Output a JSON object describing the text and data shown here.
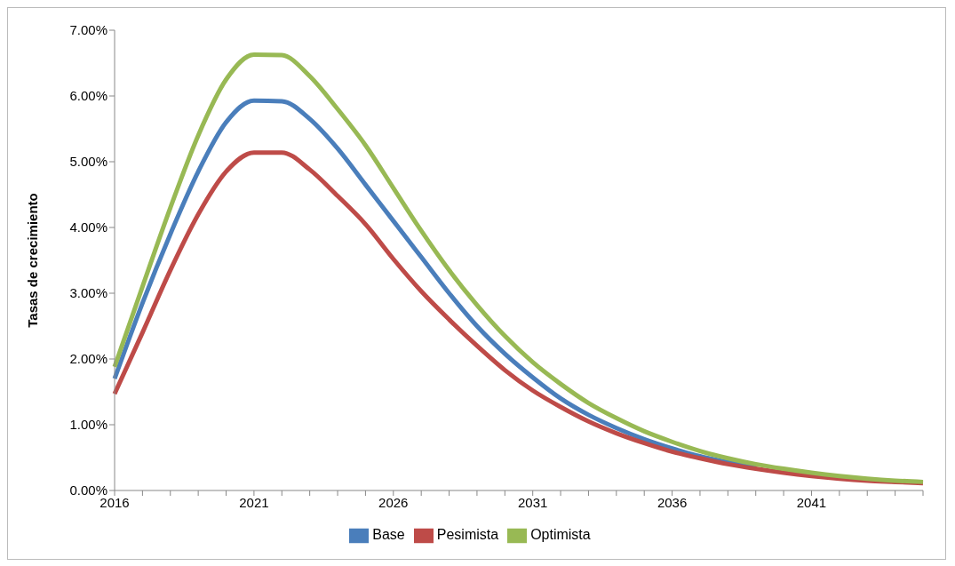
{
  "chart_data": {
    "type": "line",
    "ylabel": "Tasas de crecimiento",
    "categories": [
      "2016",
      null,
      null,
      null,
      null,
      "2021",
      null,
      null,
      null,
      null,
      "2026",
      null,
      null,
      null,
      null,
      "2031",
      null,
      null,
      null,
      null,
      "2036",
      null,
      null,
      null,
      null,
      "2041",
      null,
      null,
      null,
      null
    ],
    "ylim": [
      0,
      7
    ],
    "yticks": [
      {
        "value": 0,
        "label": "0.00%"
      },
      {
        "value": 1,
        "label": "1.00%"
      },
      {
        "value": 2,
        "label": "2.00%"
      },
      {
        "value": 3,
        "label": "3.00%"
      },
      {
        "value": 4,
        "label": "4.00%"
      },
      {
        "value": 5,
        "label": "5.00%"
      },
      {
        "value": 6,
        "label": "6.00%"
      },
      {
        "value": 7,
        "label": "7.00%"
      }
    ],
    "series": [
      {
        "name": "Base",
        "color": "#4a7ebb",
        "values": [
          1.7,
          2.85,
          3.9,
          4.85,
          5.6,
          5.93,
          5.92,
          5.65,
          5.2,
          4.65,
          4.1,
          3.55,
          3.0,
          2.5,
          2.08,
          1.72,
          1.4,
          1.15,
          0.95,
          0.78,
          0.64,
          0.52,
          0.43,
          0.35,
          null,
          null,
          null,
          null,
          null,
          null
        ]
      },
      {
        "name": "Pesimista",
        "color": "#be4b48",
        "values": [
          1.47,
          2.4,
          3.35,
          4.2,
          4.85,
          5.14,
          5.14,
          4.88,
          4.48,
          4.05,
          3.52,
          3.03,
          2.6,
          2.2,
          1.83,
          1.52,
          1.27,
          1.05,
          0.87,
          0.72,
          0.59,
          0.49,
          0.4,
          0.33,
          0.27,
          0.22,
          0.18,
          0.15,
          0.13,
          0.11
        ]
      },
      {
        "name": "Optimista",
        "color": "#98b954",
        "values": [
          1.88,
          3.1,
          4.3,
          5.4,
          6.25,
          6.63,
          6.62,
          6.3,
          5.8,
          5.25,
          4.6,
          3.95,
          3.35,
          2.82,
          2.35,
          1.95,
          1.62,
          1.33,
          1.1,
          0.9,
          0.74,
          0.6,
          0.49,
          0.4,
          0.33,
          0.27,
          0.22,
          0.18,
          0.15,
          0.13
        ]
      }
    ],
    "grid": false,
    "legend": "bottom",
    "marker": "none",
    "line_style": "solid"
  }
}
